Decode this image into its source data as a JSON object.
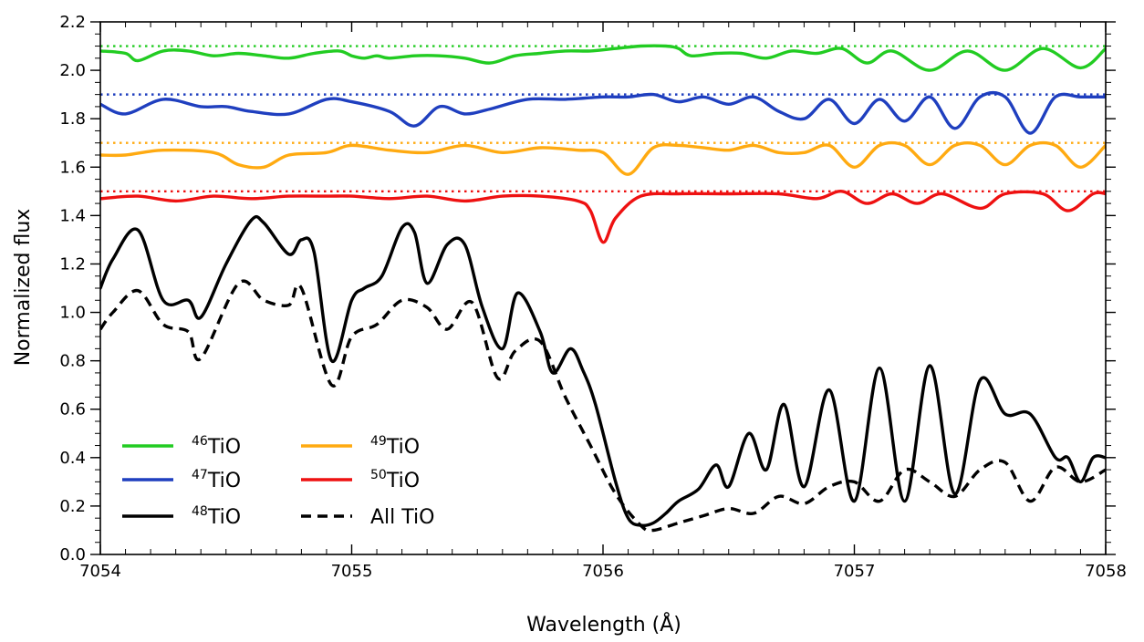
{
  "chart_data": {
    "type": "line",
    "xlabel": "Wavelength (Å)",
    "ylabel": "Normalized flux",
    "xlim": [
      7054,
      7058
    ],
    "ylim": [
      0.0,
      2.2
    ],
    "x_ticks": [
      7054,
      7055,
      7056,
      7057,
      7058
    ],
    "x_tick_labels": [
      "7054",
      "7055",
      "7056",
      "7057",
      "7058"
    ],
    "y_ticks": [
      0.0,
      0.2,
      0.4,
      0.6,
      0.8,
      1.0,
      1.2,
      1.4,
      1.6,
      1.8,
      2.0,
      2.2
    ],
    "y_tick_labels": [
      "0.0",
      "0.2",
      "0.4",
      "0.6",
      "0.8",
      "1.0",
      "1.2",
      "1.4",
      "1.6",
      "1.8",
      "2.0",
      "2.2"
    ],
    "grid": false,
    "legend_position": "bottom-left",
    "reference_lines": [
      {
        "y": 2.1,
        "color": "#22cc22",
        "style": "dotted"
      },
      {
        "y": 1.9,
        "color": "#1f3fbf",
        "style": "dotted"
      },
      {
        "y": 1.7,
        "color": "#ffaa11",
        "style": "dotted"
      },
      {
        "y": 1.5,
        "color": "#ee1111",
        "style": "dotted"
      }
    ],
    "series": [
      {
        "iso": "46",
        "mol": "TiO",
        "color": "#22cc22",
        "style": "solid",
        "x": [
          7054.0,
          7054.1,
          7054.15,
          7054.25,
          7054.35,
          7054.45,
          7054.55,
          7054.65,
          7054.75,
          7054.85,
          7054.95,
          7055.0,
          7055.05,
          7055.1,
          7055.15,
          7055.25,
          7055.35,
          7055.45,
          7055.55,
          7055.65,
          7055.75,
          7055.85,
          7055.95,
          7056.05,
          7056.15,
          7056.25,
          7056.3,
          7056.35,
          7056.45,
          7056.55,
          7056.65,
          7056.75,
          7056.85,
          7056.95,
          7057.05,
          7057.15,
          7057.3,
          7057.45,
          7057.6,
          7057.75,
          7057.9,
          7058.0
        ],
        "y": [
          2.08,
          2.07,
          2.04,
          2.08,
          2.08,
          2.06,
          2.07,
          2.06,
          2.05,
          2.07,
          2.08,
          2.06,
          2.05,
          2.06,
          2.05,
          2.06,
          2.06,
          2.05,
          2.03,
          2.06,
          2.07,
          2.08,
          2.08,
          2.09,
          2.1,
          2.1,
          2.09,
          2.06,
          2.07,
          2.07,
          2.05,
          2.08,
          2.07,
          2.09,
          2.03,
          2.08,
          2.0,
          2.08,
          2.0,
          2.09,
          2.01,
          2.09
        ]
      },
      {
        "iso": "47",
        "mol": "TiO",
        "color": "#1f3fbf",
        "style": "solid",
        "x": [
          7054.0,
          7054.1,
          7054.25,
          7054.4,
          7054.5,
          7054.6,
          7054.75,
          7054.9,
          7055.0,
          7055.15,
          7055.25,
          7055.35,
          7055.45,
          7055.55,
          7055.7,
          7055.85,
          7056.0,
          7056.1,
          7056.2,
          7056.3,
          7056.4,
          7056.5,
          7056.6,
          7056.7,
          7056.8,
          7056.9,
          7057.0,
          7057.1,
          7057.2,
          7057.3,
          7057.4,
          7057.5,
          7057.6,
          7057.7,
          7057.8,
          7057.9,
          7058.0
        ],
        "y": [
          1.86,
          1.82,
          1.88,
          1.85,
          1.85,
          1.83,
          1.82,
          1.88,
          1.87,
          1.83,
          1.77,
          1.85,
          1.82,
          1.84,
          1.88,
          1.88,
          1.89,
          1.89,
          1.9,
          1.87,
          1.89,
          1.86,
          1.89,
          1.83,
          1.8,
          1.88,
          1.78,
          1.88,
          1.79,
          1.89,
          1.76,
          1.89,
          1.89,
          1.74,
          1.89,
          1.89,
          1.89
        ]
      },
      {
        "iso": "49",
        "mol": "TiO",
        "color": "#ffaa11",
        "style": "solid",
        "x": [
          7054.0,
          7054.1,
          7054.25,
          7054.45,
          7054.55,
          7054.65,
          7054.75,
          7054.9,
          7055.0,
          7055.15,
          7055.3,
          7055.45,
          7055.6,
          7055.75,
          7055.9,
          7056.0,
          7056.1,
          7056.2,
          7056.3,
          7056.4,
          7056.5,
          7056.6,
          7056.7,
          7056.8,
          7056.9,
          7057.0,
          7057.1,
          7057.2,
          7057.3,
          7057.4,
          7057.5,
          7057.6,
          7057.7,
          7057.8,
          7057.9,
          7058.0
        ],
        "y": [
          1.65,
          1.65,
          1.67,
          1.66,
          1.61,
          1.6,
          1.65,
          1.66,
          1.69,
          1.67,
          1.66,
          1.69,
          1.66,
          1.68,
          1.67,
          1.66,
          1.57,
          1.68,
          1.69,
          1.68,
          1.67,
          1.69,
          1.66,
          1.66,
          1.69,
          1.6,
          1.69,
          1.69,
          1.61,
          1.69,
          1.69,
          1.61,
          1.69,
          1.69,
          1.6,
          1.69
        ]
      },
      {
        "iso": "50",
        "mol": "TiO",
        "color": "#ee1111",
        "style": "solid",
        "x": [
          7054.0,
          7054.15,
          7054.3,
          7054.45,
          7054.6,
          7054.75,
          7054.9,
          7055.0,
          7055.15,
          7055.3,
          7055.45,
          7055.6,
          7055.75,
          7055.9,
          7055.95,
          7056.0,
          7056.05,
          7056.15,
          7056.3,
          7056.5,
          7056.7,
          7056.85,
          7056.95,
          7057.05,
          7057.15,
          7057.25,
          7057.35,
          7057.5,
          7057.6,
          7057.75,
          7057.85,
          7057.95,
          7058.0
        ],
        "y": [
          1.47,
          1.48,
          1.46,
          1.48,
          1.47,
          1.48,
          1.48,
          1.48,
          1.47,
          1.48,
          1.46,
          1.48,
          1.48,
          1.46,
          1.42,
          1.29,
          1.39,
          1.48,
          1.49,
          1.49,
          1.49,
          1.47,
          1.5,
          1.45,
          1.49,
          1.45,
          1.49,
          1.43,
          1.49,
          1.49,
          1.42,
          1.49,
          1.49
        ]
      },
      {
        "iso": "48",
        "mol": "TiO",
        "color": "#000000",
        "style": "solid",
        "x": [
          7054.0,
          7054.05,
          7054.15,
          7054.25,
          7054.35,
          7054.4,
          7054.5,
          7054.6,
          7054.65,
          7054.75,
          7054.8,
          7054.85,
          7054.92,
          7055.0,
          7055.05,
          7055.12,
          7055.2,
          7055.25,
          7055.3,
          7055.38,
          7055.45,
          7055.52,
          7055.6,
          7055.66,
          7055.75,
          7055.8,
          7055.87,
          7055.92,
          7055.97,
          7056.05,
          7056.1,
          7056.15,
          7056.2,
          7056.25,
          7056.3,
          7056.38,
          7056.45,
          7056.5,
          7056.58,
          7056.65,
          7056.72,
          7056.8,
          7056.9,
          7057.0,
          7057.1,
          7057.2,
          7057.3,
          7057.4,
          7057.5,
          7057.6,
          7057.7,
          7057.8,
          7057.85,
          7057.9,
          7057.95,
          7058.0
        ],
        "y": [
          1.1,
          1.22,
          1.34,
          1.05,
          1.05,
          0.98,
          1.2,
          1.38,
          1.37,
          1.24,
          1.3,
          1.25,
          0.8,
          1.05,
          1.1,
          1.15,
          1.35,
          1.33,
          1.12,
          1.28,
          1.28,
          1.02,
          0.85,
          1.08,
          0.92,
          0.75,
          0.85,
          0.76,
          0.62,
          0.3,
          0.15,
          0.12,
          0.13,
          0.17,
          0.22,
          0.27,
          0.37,
          0.28,
          0.5,
          0.35,
          0.62,
          0.28,
          0.68,
          0.22,
          0.77,
          0.22,
          0.78,
          0.25,
          0.72,
          0.58,
          0.58,
          0.4,
          0.4,
          0.3,
          0.4,
          0.4
        ]
      },
      {
        "iso": "",
        "mol": "All TiO",
        "color": "#000000",
        "style": "dashed",
        "x": [
          7054.0,
          7054.05,
          7054.15,
          7054.25,
          7054.35,
          7054.4,
          7054.55,
          7054.65,
          7054.75,
          7054.8,
          7054.92,
          7055.0,
          7055.1,
          7055.2,
          7055.3,
          7055.38,
          7055.48,
          7055.58,
          7055.65,
          7055.75,
          7055.85,
          7055.95,
          7056.05,
          7056.15,
          7056.2,
          7056.3,
          7056.4,
          7056.5,
          7056.6,
          7056.7,
          7056.8,
          7056.9,
          7057.0,
          7057.1,
          7057.2,
          7057.3,
          7057.4,
          7057.5,
          7057.6,
          7057.7,
          7057.8,
          7057.9,
          7058.0
        ],
        "y": [
          0.93,
          1.0,
          1.09,
          0.95,
          0.92,
          0.81,
          1.12,
          1.05,
          1.03,
          1.1,
          0.7,
          0.9,
          0.95,
          1.05,
          1.02,
          0.93,
          1.04,
          0.73,
          0.84,
          0.88,
          0.65,
          0.45,
          0.25,
          0.12,
          0.1,
          0.13,
          0.16,
          0.19,
          0.17,
          0.24,
          0.21,
          0.28,
          0.3,
          0.22,
          0.35,
          0.3,
          0.24,
          0.35,
          0.38,
          0.22,
          0.36,
          0.3,
          0.35
        ]
      }
    ],
    "legend": [
      {
        "iso": "46",
        "mol": "TiO",
        "color": "#22cc22",
        "style": "solid"
      },
      {
        "iso": "47",
        "mol": "TiO",
        "color": "#1f3fbf",
        "style": "solid"
      },
      {
        "iso": "48",
        "mol": "TiO",
        "color": "#000000",
        "style": "solid"
      },
      {
        "iso": "49",
        "mol": "TiO",
        "color": "#ffaa11",
        "style": "solid"
      },
      {
        "iso": "50",
        "mol": "TiO",
        "color": "#ee1111",
        "style": "solid"
      },
      {
        "iso": "",
        "mol": "All TiO",
        "color": "#000000",
        "style": "dashed"
      }
    ]
  }
}
